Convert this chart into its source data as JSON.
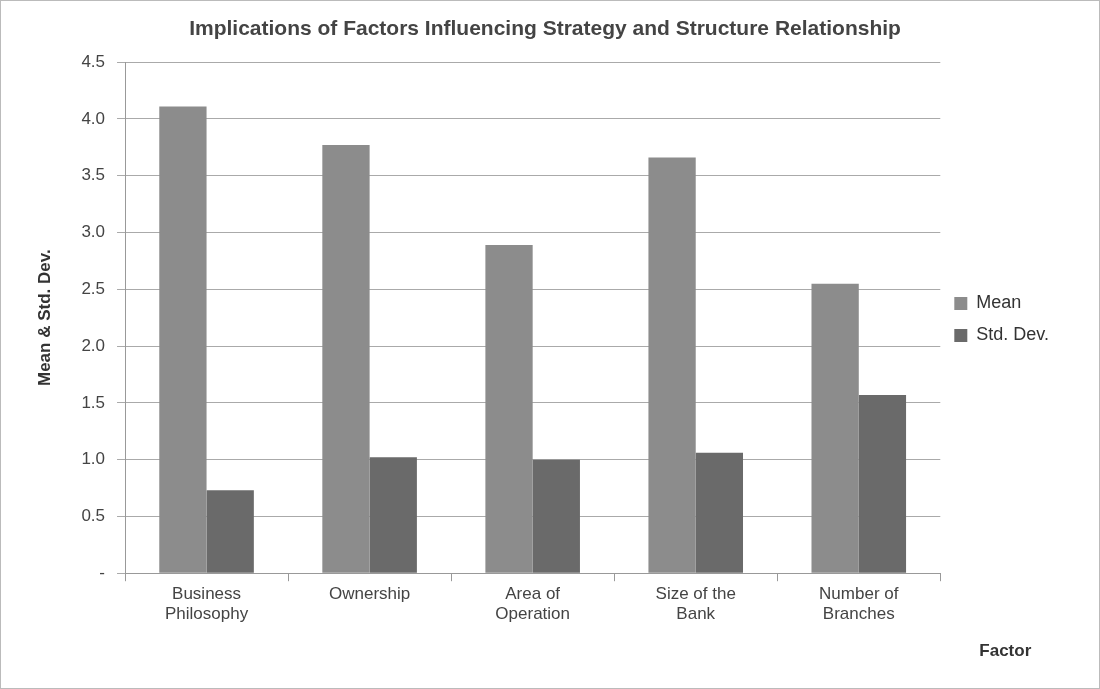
{
  "chart_data": {
    "type": "bar",
    "title": "Implications of Factors Influencing Strategy and Structure Relationship",
    "xlabel": "Factor",
    "ylabel": "Mean & Std. Dev.",
    "categories": [
      "Business Philosophy",
      "Ownership",
      "Area of Operation",
      "Size of the Bank",
      "Number of Branches"
    ],
    "series": [
      {
        "name": "Mean",
        "color": "#8c8c8c",
        "values": [
          4.11,
          3.77,
          2.89,
          3.66,
          2.55
        ]
      },
      {
        "name": "Std. Dev.",
        "color": "#6a6a6a",
        "values": [
          0.73,
          1.02,
          1.0,
          1.06,
          1.57
        ]
      }
    ],
    "ylim": [
      0,
      4.5
    ],
    "yticks": [
      {
        "value": 0,
        "label": "-"
      },
      {
        "value": 0.5,
        "label": "0.5"
      },
      {
        "value": 1,
        "label": "1.0"
      },
      {
        "value": 1.5,
        "label": "1.5"
      },
      {
        "value": 2,
        "label": "2.0"
      },
      {
        "value": 2.5,
        "label": "2.5"
      },
      {
        "value": 3,
        "label": "3.0"
      },
      {
        "value": 3.5,
        "label": "3.5"
      },
      {
        "value": 4,
        "label": "4.0"
      },
      {
        "value": 4.5,
        "label": "4.5"
      }
    ],
    "grid": "y",
    "legend": "right"
  }
}
